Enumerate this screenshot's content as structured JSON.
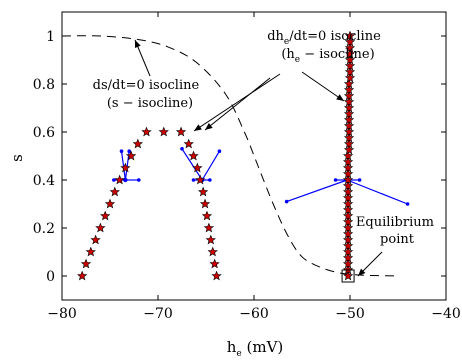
{
  "chart_data": {
    "type": "scatter",
    "xlabel": "h",
    "xlabel_sub": "e",
    "xlabel_unit": " (mV)",
    "ylabel": "s",
    "xlim": [
      -80,
      -40
    ],
    "ylim": [
      -0.1,
      1.1
    ],
    "xticks": [
      -80,
      -70,
      -60,
      -50,
      -40
    ],
    "yticks": [
      0,
      0.2,
      0.4,
      0.6,
      0.8,
      1
    ],
    "tick_labels_x": [
      "−80",
      "−70",
      "−60",
      "−50",
      "−40"
    ],
    "tick_labels_y": [
      "0",
      "0.2",
      "0.4",
      "0.6",
      "0.8",
      "1"
    ],
    "grid": false,
    "star_color": "#cc0000",
    "vector_color": "#0000ff",
    "s_isocline": {
      "x": [
        -80,
        -76,
        -72,
        -69,
        -66,
        -63,
        -61,
        -59.5,
        -58,
        -56.5,
        -55,
        -53,
        -51,
        -49,
        -47,
        -45
      ],
      "y": [
        1.0,
        1.0,
        0.985,
        0.955,
        0.89,
        0.76,
        0.6,
        0.45,
        0.3,
        0.17,
        0.08,
        0.035,
        0.012,
        0.004,
        0.0015,
        0.0
      ]
    },
    "star_points": [
      {
        "x": -77.9,
        "y": 0.0
      },
      {
        "x": -77.5,
        "y": 0.05
      },
      {
        "x": -77.0,
        "y": 0.1
      },
      {
        "x": -76.5,
        "y": 0.15
      },
      {
        "x": -76.0,
        "y": 0.2
      },
      {
        "x": -75.5,
        "y": 0.25
      },
      {
        "x": -75.0,
        "y": 0.3
      },
      {
        "x": -74.5,
        "y": 0.35
      },
      {
        "x": -74.0,
        "y": 0.4
      },
      {
        "x": -73.4,
        "y": 0.45
      },
      {
        "x": -72.8,
        "y": 0.5
      },
      {
        "x": -72.1,
        "y": 0.55
      },
      {
        "x": -71.2,
        "y": 0.6
      },
      {
        "x": -69.4,
        "y": 0.6
      },
      {
        "x": -67.6,
        "y": 0.6
      },
      {
        "x": -66.8,
        "y": 0.55
      },
      {
        "x": -66.3,
        "y": 0.5
      },
      {
        "x": -65.9,
        "y": 0.45
      },
      {
        "x": -65.6,
        "y": 0.4
      },
      {
        "x": -65.3,
        "y": 0.35
      },
      {
        "x": -65.1,
        "y": 0.3
      },
      {
        "x": -64.9,
        "y": 0.25
      },
      {
        "x": -64.7,
        "y": 0.2
      },
      {
        "x": -64.5,
        "y": 0.15
      },
      {
        "x": -64.3,
        "y": 0.1
      },
      {
        "x": -64.1,
        "y": 0.05
      },
      {
        "x": -63.9,
        "y": 0.0
      },
      {
        "x": -50.2,
        "y": 0.0
      },
      {
        "x": -50.2,
        "y": 0.025
      },
      {
        "x": -50.2,
        "y": 0.05
      },
      {
        "x": -50.2,
        "y": 0.075
      },
      {
        "x": -50.2,
        "y": 0.1
      },
      {
        "x": -50.2,
        "y": 0.125
      },
      {
        "x": -50.2,
        "y": 0.15
      },
      {
        "x": -50.2,
        "y": 0.175
      },
      {
        "x": -50.2,
        "y": 0.2
      },
      {
        "x": -50.2,
        "y": 0.225
      },
      {
        "x": -50.2,
        "y": 0.25
      },
      {
        "x": -50.2,
        "y": 0.275
      },
      {
        "x": -50.2,
        "y": 0.3
      },
      {
        "x": -50.2,
        "y": 0.325
      },
      {
        "x": -50.2,
        "y": 0.35
      },
      {
        "x": -50.2,
        "y": 0.375
      },
      {
        "x": -50.2,
        "y": 0.4
      },
      {
        "x": -50.2,
        "y": 0.425
      },
      {
        "x": -50.2,
        "y": 0.45
      },
      {
        "x": -50.2,
        "y": 0.475
      },
      {
        "x": -50.2,
        "y": 0.5
      },
      {
        "x": -50.1,
        "y": 0.525
      },
      {
        "x": -50.1,
        "y": 0.55
      },
      {
        "x": -50.1,
        "y": 0.575
      },
      {
        "x": -50.1,
        "y": 0.6
      },
      {
        "x": -50.1,
        "y": 0.625
      },
      {
        "x": -50.1,
        "y": 0.65
      },
      {
        "x": -50.1,
        "y": 0.675
      },
      {
        "x": -50.1,
        "y": 0.7
      },
      {
        "x": -50.1,
        "y": 0.725
      },
      {
        "x": -50.1,
        "y": 0.75
      },
      {
        "x": -50.1,
        "y": 0.775
      },
      {
        "x": -50.1,
        "y": 0.8
      },
      {
        "x": -50.0,
        "y": 0.825
      },
      {
        "x": -50.0,
        "y": 0.85
      },
      {
        "x": -50.0,
        "y": 0.875
      },
      {
        "x": -50.0,
        "y": 0.9
      },
      {
        "x": -50.0,
        "y": 0.925
      },
      {
        "x": -50.0,
        "y": 0.95
      },
      {
        "x": -50.0,
        "y": 0.975
      },
      {
        "x": -50.0,
        "y": 1.0
      }
    ],
    "vector_fans": [
      {
        "origin": [
          -73.4,
          0.4
        ],
        "ends": [
          [
            -74.6,
            0.4
          ],
          [
            -72.0,
            0.4
          ],
          [
            -73.8,
            0.52
          ],
          [
            -73.0,
            0.52
          ]
        ]
      },
      {
        "origin": [
          -65.4,
          0.4
        ],
        "ends": [
          [
            -67.5,
            0.53
          ],
          [
            -66.3,
            0.4
          ],
          [
            -64.6,
            0.4
          ],
          [
            -63.6,
            0.52
          ]
        ]
      },
      {
        "origin": [
          -50.3,
          0.4
        ],
        "ends": [
          [
            -56.6,
            0.31
          ],
          [
            -51.5,
            0.4
          ],
          [
            -49.0,
            0.4
          ],
          [
            -44.0,
            0.3
          ]
        ]
      }
    ],
    "equilibrium": {
      "x": -50.2,
      "y": 0.0
    },
    "annotations": [
      {
        "id": "s_iso",
        "lines": [
          "ds/dt=0 isocline",
          "(s − isocline)"
        ]
      },
      {
        "id": "he_iso",
        "line1_pre": "dh",
        "line1_sub": "e",
        "line1_post": "/dt=0 isocline",
        "line2_pre": "(h",
        "line2_sub": "e",
        "line2_post": " − isocline)"
      },
      {
        "id": "equilibrium",
        "lines": [
          "Equilibrium",
          "point"
        ]
      }
    ]
  }
}
